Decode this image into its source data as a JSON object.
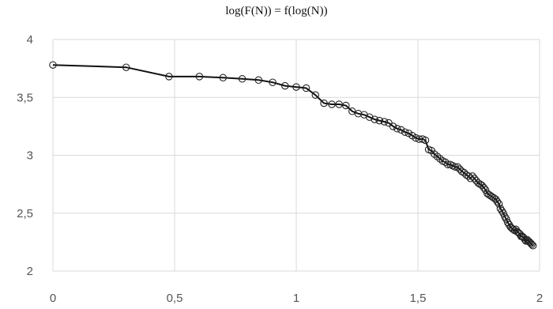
{
  "chart_data": {
    "type": "line",
    "title": "log(F(N)) = f(log(N))",
    "xlabel": "",
    "ylabel": "",
    "xlim": [
      0,
      2
    ],
    "ylim": [
      2,
      4
    ],
    "x_ticks": [
      "0",
      "0,5",
      "1",
      "1,5",
      "2"
    ],
    "y_ticks": [
      "2",
      "2,5",
      "3",
      "3,5",
      "4"
    ],
    "grid": true,
    "legend": "none",
    "line_color": "#111111",
    "marker": "open-circle",
    "series": [
      {
        "x": [
          0,
          0.301,
          0.477,
          0.602,
          0.699,
          0.778,
          0.845,
          0.903,
          0.954,
          1.0,
          1.041,
          1.079,
          1.114,
          1.146,
          1.176,
          1.204,
          1.23,
          1.255,
          1.279,
          1.301,
          1.322,
          1.342,
          1.362,
          1.38,
          1.398,
          1.415,
          1.431,
          1.447,
          1.462,
          1.477,
          1.491,
          1.505,
          1.519,
          1.531,
          1.544,
          1.556,
          1.568,
          1.58,
          1.591,
          1.602,
          1.613,
          1.623,
          1.633,
          1.643,
          1.653,
          1.663,
          1.672,
          1.681,
          1.69,
          1.699,
          1.708,
          1.716,
          1.724,
          1.732,
          1.74,
          1.748,
          1.756,
          1.763,
          1.771,
          1.778,
          1.785,
          1.792,
          1.799,
          1.806,
          1.813,
          1.82,
          1.826,
          1.833,
          1.839,
          1.845,
          1.851,
          1.857,
          1.863,
          1.869,
          1.875,
          1.881,
          1.886,
          1.892,
          1.898,
          1.903,
          1.908,
          1.914,
          1.919,
          1.924,
          1.929,
          1.934,
          1.94,
          1.944,
          1.949,
          1.954,
          1.959,
          1.964,
          1.968,
          1.973
        ],
        "values": [
          3.78,
          3.76,
          3.68,
          3.68,
          3.67,
          3.66,
          3.65,
          3.63,
          3.6,
          3.59,
          3.58,
          3.52,
          3.45,
          3.44,
          3.44,
          3.43,
          3.38,
          3.36,
          3.35,
          3.33,
          3.31,
          3.3,
          3.29,
          3.28,
          3.25,
          3.23,
          3.22,
          3.2,
          3.19,
          3.17,
          3.15,
          3.14,
          3.14,
          3.13,
          3.05,
          3.04,
          3.01,
          2.99,
          2.97,
          2.95,
          2.94,
          2.92,
          2.92,
          2.91,
          2.9,
          2.9,
          2.88,
          2.86,
          2.85,
          2.83,
          2.82,
          2.8,
          2.82,
          2.8,
          2.78,
          2.76,
          2.75,
          2.74,
          2.72,
          2.7,
          2.67,
          2.66,
          2.65,
          2.64,
          2.63,
          2.62,
          2.6,
          2.58,
          2.54,
          2.52,
          2.5,
          2.47,
          2.45,
          2.42,
          2.4,
          2.38,
          2.37,
          2.36,
          2.35,
          2.36,
          2.34,
          2.33,
          2.32,
          2.3,
          2.3,
          2.29,
          2.27,
          2.26,
          2.27,
          2.26,
          2.25,
          2.24,
          2.23,
          2.22
        ]
      }
    ]
  }
}
